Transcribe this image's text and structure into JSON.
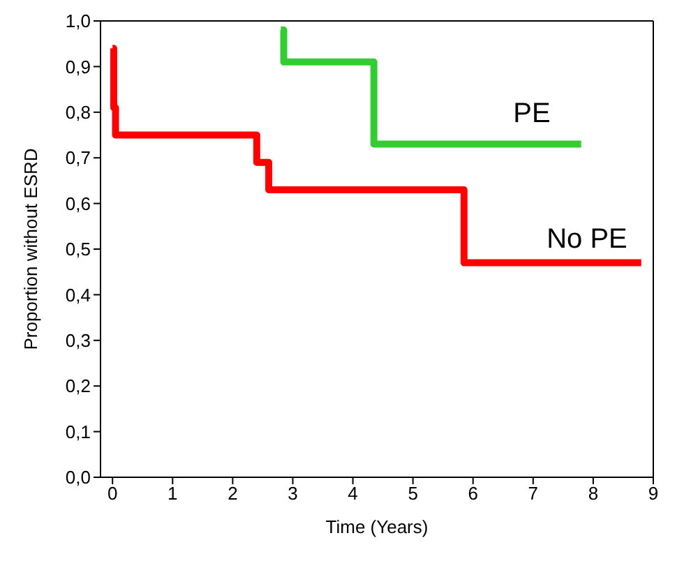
{
  "chart_data": {
    "type": "step",
    "xlabel": "Time (Years)",
    "ylabel": "Proportion without ESRD",
    "xlim": [
      -0.2,
      9
    ],
    "xticks": [
      0,
      1,
      2,
      3,
      4,
      5,
      6,
      7,
      8,
      9
    ],
    "ylim": [
      0,
      1
    ],
    "yticks": [
      {
        "value": 0,
        "label": "0,0"
      },
      {
        "value": 0.1,
        "label": "0,1"
      },
      {
        "value": 0.2,
        "label": "0,2"
      },
      {
        "value": 0.3,
        "label": "0,3"
      },
      {
        "value": 0.4,
        "label": "0,4"
      },
      {
        "value": 0.5,
        "label": "0,5"
      },
      {
        "value": 0.6,
        "label": "0,6"
      },
      {
        "value": 0.7,
        "label": "0,7"
      },
      {
        "value": 0.8,
        "label": "0,8"
      },
      {
        "value": 0.9,
        "label": "0,9"
      },
      {
        "value": 1,
        "label": "1,0"
      }
    ],
    "marker": "none",
    "line_style": "solid",
    "series": [
      {
        "name": "PE",
        "color": "#33cc33",
        "x": [
          2.8,
          2.85,
          4.35,
          7.8
        ],
        "values": [
          0.98,
          0.91,
          0.73,
          0.73
        ]
      },
      {
        "name": "No PE",
        "color": "#ff0000",
        "x": [
          0,
          0.02,
          0.05,
          2.4,
          2.6,
          5.85,
          8.8
        ],
        "values": [
          0.94,
          0.81,
          0.75,
          0.69,
          0.63,
          0.47,
          0.47
        ]
      }
    ]
  }
}
